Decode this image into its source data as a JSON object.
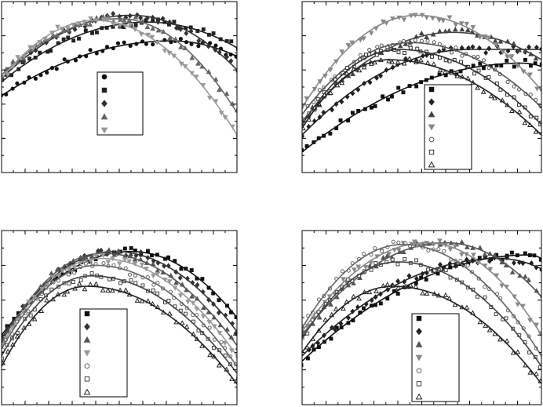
{
  "colors": {
    "s1": "#111111",
    "s2": "#333333",
    "s3": "#555555",
    "s4": "#777777",
    "s5": "#999999",
    "s6": "#222222",
    "s7": "#444444"
  },
  "chart_data": [
    {
      "type": "scatter",
      "panel": "top-left",
      "title": "",
      "xlabel": "",
      "ylabel": "",
      "xlim": [
        0,
        100
      ],
      "ylim": [
        0,
        100
      ],
      "grid": false,
      "legend_position": "center",
      "series": [
        {
          "marker": "circle",
          "color": "#111111",
          "peak_x": 72,
          "peak_y": 77,
          "left_y": 45,
          "right_y": 68
        },
        {
          "marker": "square",
          "color": "#222222",
          "peak_x": 62,
          "peak_y": 88,
          "left_y": 53,
          "right_y": 73
        },
        {
          "marker": "diamond",
          "color": "#333333",
          "peak_x": 55,
          "peak_y": 92,
          "left_y": 55,
          "right_y": 60
        },
        {
          "marker": "triangle-up",
          "color": "#666666",
          "peak_x": 50,
          "peak_y": 90,
          "left_y": 57,
          "right_y": 35
        },
        {
          "marker": "triangle-down",
          "color": "#999999",
          "peak_x": 40,
          "peak_y": 89,
          "left_y": 55,
          "right_y": 22
        }
      ]
    },
    {
      "type": "scatter",
      "panel": "top-right",
      "title": "",
      "xlabel": "",
      "ylabel": "",
      "xlim": [
        0,
        100
      ],
      "ylim": [
        0,
        100
      ],
      "grid": false,
      "legend_position": "center-right",
      "series": [
        {
          "marker": "square",
          "color": "#111111",
          "peak_x": 92,
          "peak_y": 64,
          "left_y": 12,
          "right_y": 62
        },
        {
          "marker": "diamond",
          "color": "#222222",
          "peak_x": 70,
          "peak_y": 72,
          "left_y": 22,
          "right_y": 72
        },
        {
          "marker": "triangle-up",
          "color": "#444444",
          "peak_x": 63,
          "peak_y": 82,
          "left_y": 30,
          "right_y": 66
        },
        {
          "marker": "triangle-down",
          "color": "#888888",
          "peak_x": 48,
          "peak_y": 92,
          "left_y": 38,
          "right_y": 48
        },
        {
          "marker": "circle-open",
          "color": "#555555",
          "peak_x": 45,
          "peak_y": 76,
          "left_y": 34,
          "right_y": 38
        },
        {
          "marker": "square-open",
          "color": "#333333",
          "peak_x": 40,
          "peak_y": 72,
          "left_y": 28,
          "right_y": 28
        },
        {
          "marker": "triangle-open",
          "color": "#222222",
          "peak_x": 36,
          "peak_y": 66,
          "left_y": 26,
          "right_y": 22
        }
      ]
    },
    {
      "type": "scatter",
      "panel": "bottom-left",
      "title": "",
      "xlabel": "",
      "ylabel": "",
      "xlim": [
        0,
        100
      ],
      "ylim": [
        0,
        100
      ],
      "grid": false,
      "legend_position": "bottom-center",
      "series": [
        {
          "marker": "square",
          "color": "#111111",
          "peak_x": 55,
          "peak_y": 88,
          "left_y": 40,
          "right_y": 50
        },
        {
          "marker": "diamond",
          "color": "#333333",
          "peak_x": 48,
          "peak_y": 88,
          "left_y": 38,
          "right_y": 42
        },
        {
          "marker": "triangle-up",
          "color": "#555555",
          "peak_x": 43,
          "peak_y": 87,
          "left_y": 36,
          "right_y": 34
        },
        {
          "marker": "triangle-down",
          "color": "#999999",
          "peak_x": 42,
          "peak_y": 84,
          "left_y": 34,
          "right_y": 28
        },
        {
          "marker": "circle-open",
          "color": "#666666",
          "peak_x": 40,
          "peak_y": 80,
          "left_y": 32,
          "right_y": 22
        },
        {
          "marker": "square-open",
          "color": "#444444",
          "peak_x": 38,
          "peak_y": 74,
          "left_y": 28,
          "right_y": 18
        },
        {
          "marker": "triangle-open",
          "color": "#222222",
          "peak_x": 36,
          "peak_y": 68,
          "left_y": 22,
          "right_y": 12
        }
      ]
    },
    {
      "type": "scatter",
      "panel": "bottom-right",
      "title": "",
      "xlabel": "",
      "ylabel": "",
      "xlim": [
        0,
        100
      ],
      "ylim": [
        0,
        100
      ],
      "grid": false,
      "legend_position": "bottom-right",
      "series": [
        {
          "marker": "square",
          "color": "#111111",
          "peak_x": 95,
          "peak_y": 86,
          "left_y": 25,
          "right_y": 84
        },
        {
          "marker": "diamond",
          "color": "#222222",
          "peak_x": 82,
          "peak_y": 84,
          "left_y": 28,
          "right_y": 78
        },
        {
          "marker": "triangle-up",
          "color": "#555555",
          "peak_x": 60,
          "peak_y": 93,
          "left_y": 40,
          "right_y": 62
        },
        {
          "marker": "triangle-down",
          "color": "#888888",
          "peak_x": 52,
          "peak_y": 93,
          "left_y": 42,
          "right_y": 40
        },
        {
          "marker": "circle-open",
          "color": "#666666",
          "peak_x": 42,
          "peak_y": 92,
          "left_y": 44,
          "right_y": 28
        },
        {
          "marker": "square-open",
          "color": "#444444",
          "peak_x": 40,
          "peak_y": 82,
          "left_y": 38,
          "right_y": 22
        },
        {
          "marker": "triangle-open",
          "color": "#222222",
          "peak_x": 38,
          "peak_y": 68,
          "left_y": 30,
          "right_y": 12
        }
      ]
    }
  ]
}
